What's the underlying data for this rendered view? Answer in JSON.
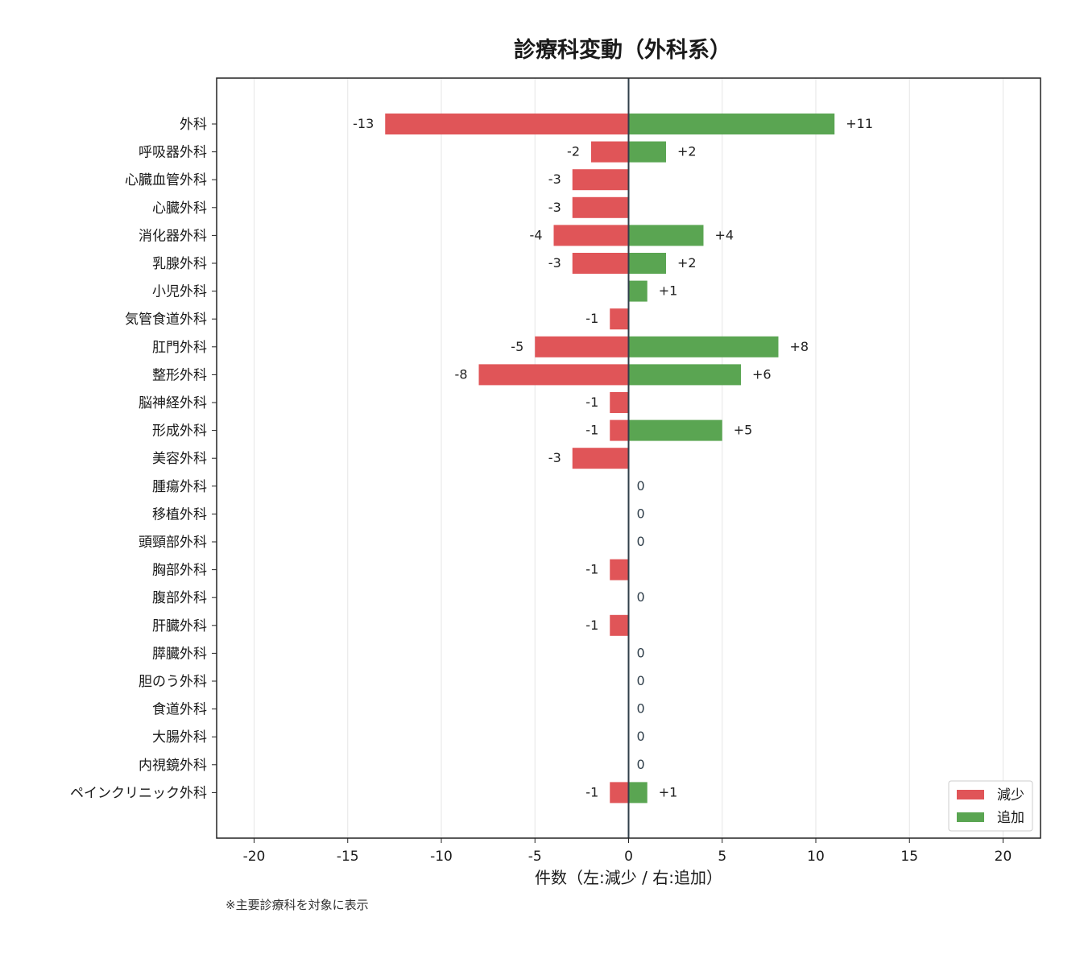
{
  "chart_data": {
    "type": "bar",
    "orientation": "horizontal-diverging",
    "title": "診療科変動（外科系）",
    "xlabel": "件数（左:減少 / 右:追加）",
    "xlim": [
      -22,
      22
    ],
    "xticks": [
      -20,
      -15,
      -10,
      -5,
      0,
      5,
      10,
      15,
      20
    ],
    "xtick_labels": [
      "-20",
      "-15",
      "-10",
      "-5",
      "0",
      "5",
      "10",
      "15",
      "20"
    ],
    "grid": "vertical",
    "legend_position": "bottom-right",
    "categories": [
      "外科",
      "呼吸器外科",
      "心臓血管外科",
      "心臓外科",
      "消化器外科",
      "乳腺外科",
      "小児外科",
      "気管食道外科",
      "肛門外科",
      "整形外科",
      "脳神経外科",
      "形成外科",
      "美容外科",
      "腫瘍外科",
      "移植外科",
      "頭頸部外科",
      "胸部外科",
      "腹部外科",
      "肝臓外科",
      "膵臓外科",
      "胆のう外科",
      "食道外科",
      "大腸外科",
      "内視鏡外科",
      "ペインクリニック外科"
    ],
    "series": [
      {
        "name": "減少",
        "color": "#e05558",
        "values": [
          -13,
          -2,
          -3,
          -3,
          -4,
          -3,
          0,
          -1,
          -5,
          -8,
          -1,
          -1,
          -3,
          0,
          0,
          0,
          -1,
          0,
          -1,
          0,
          0,
          0,
          0,
          0,
          -1
        ],
        "labels": [
          "-13",
          "-2",
          "-3",
          "-3",
          "-4",
          "-3",
          "",
          "-1",
          "-5",
          "-8",
          "-1",
          "-1",
          "-3",
          "",
          "",
          "",
          "-1",
          "",
          "-1",
          "",
          "",
          "",
          "",
          "",
          "-1"
        ]
      },
      {
        "name": "追加",
        "color": "#5aa552",
        "values": [
          11,
          2,
          0,
          0,
          4,
          2,
          1,
          0,
          8,
          6,
          0,
          5,
          0,
          0,
          0,
          0,
          0,
          0,
          0,
          0,
          0,
          0,
          0,
          0,
          1
        ],
        "labels": [
          "+11",
          "+2",
          "",
          "",
          "+4",
          "+2",
          "+1",
          "",
          "+8",
          "+6",
          "",
          "+5",
          "",
          "0",
          "0",
          "0",
          "",
          "0",
          "",
          "0",
          "0",
          "0",
          "0",
          "0",
          "+1"
        ]
      }
    ]
  },
  "footnote": "※主要診療科を対象に表示"
}
